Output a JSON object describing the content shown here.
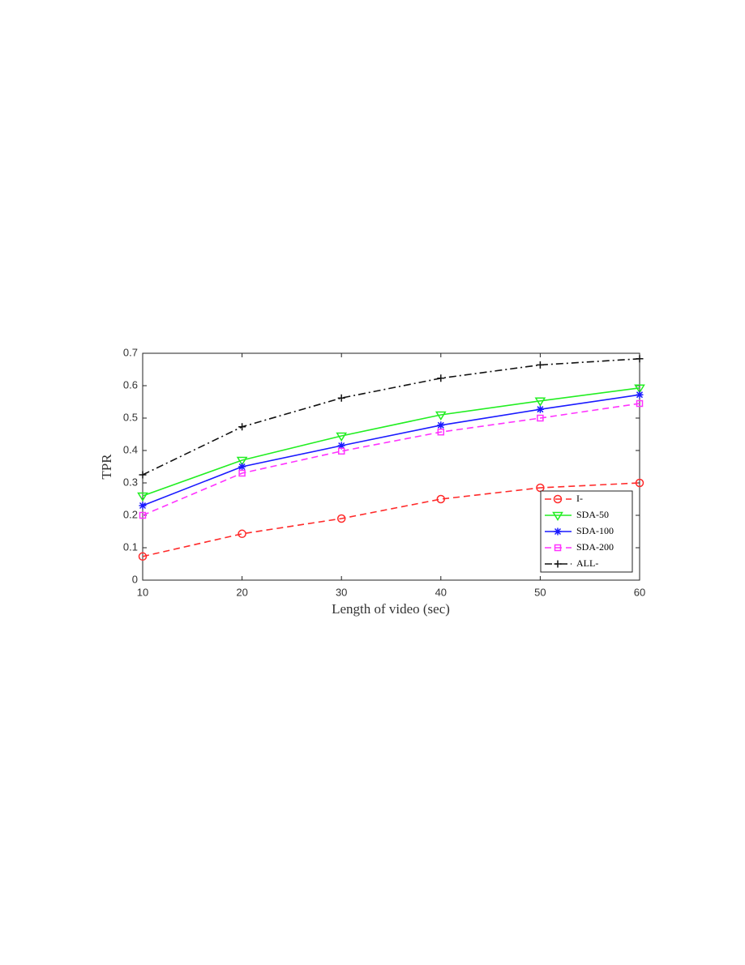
{
  "chart_data": {
    "type": "line",
    "x_label": "Length of video (sec)",
    "y_label": "TPR",
    "x": [
      10,
      20,
      30,
      40,
      50,
      60
    ],
    "xlim": [
      10,
      60
    ],
    "xticks": [
      10,
      20,
      30,
      40,
      50,
      60
    ],
    "ylim": [
      0,
      0.7
    ],
    "yticks": [
      0,
      0.1,
      0.2,
      0.3,
      0.4,
      0.5,
      0.6,
      0.7
    ],
    "legend": "lower right",
    "series": [
      {
        "name": "I-",
        "color": "#ff2a2a",
        "marker": "circle",
        "dash": "dashed",
        "values": [
          0.073,
          0.143,
          0.19,
          0.25,
          0.285,
          0.3
        ]
      },
      {
        "name": "SDA-50",
        "color": "#22ee22",
        "marker": "triangle-down",
        "dash": "solid",
        "values": [
          0.26,
          0.37,
          0.445,
          0.51,
          0.553,
          0.593
        ]
      },
      {
        "name": "SDA-100",
        "color": "#1a1aff",
        "marker": "asterisk",
        "dash": "solid",
        "values": [
          0.23,
          0.35,
          0.415,
          0.478,
          0.527,
          0.572
        ]
      },
      {
        "name": "SDA-200",
        "color": "#ff33ff",
        "marker": "square",
        "dash": "dashed",
        "values": [
          0.2,
          0.33,
          0.398,
          0.457,
          0.5,
          0.545
        ]
      },
      {
        "name": "ALL-",
        "color": "#111111",
        "marker": "plus",
        "dash": "dashdot",
        "values": [
          0.325,
          0.473,
          0.562,
          0.623,
          0.664,
          0.683
        ]
      }
    ]
  }
}
